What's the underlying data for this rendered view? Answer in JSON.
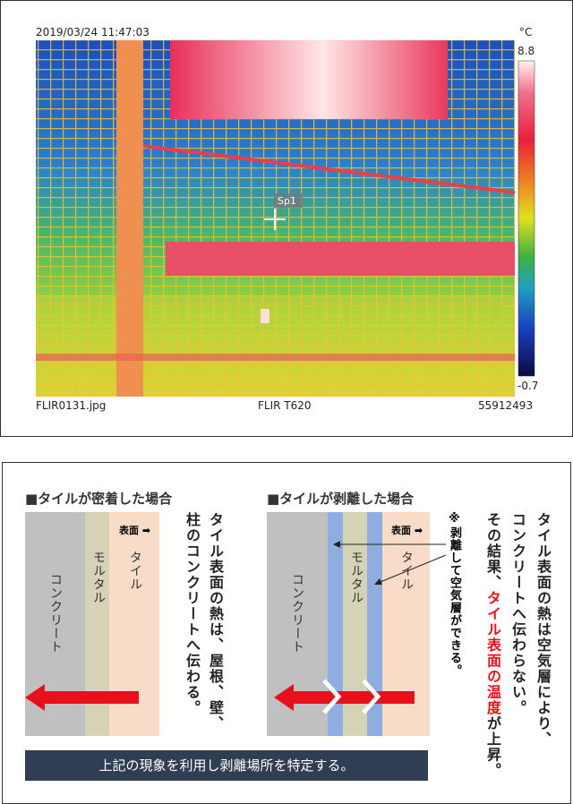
{
  "thermal": {
    "timestamp": "2019/03/24 11:47:03",
    "unit": "°C",
    "scale_max": "8.8",
    "scale_min": "-0.7",
    "spot": "Sp1",
    "filename": "FLIR0131.jpg",
    "camera": "FLIR T620",
    "serial": "55912493"
  },
  "left": {
    "title": "■タイルが密着した場合",
    "surface": "表面",
    "concrete": "コンクリート",
    "mortar": "モルタル",
    "tile": "タイル",
    "line1": "タイル表面の熱は、屋根、壁、",
    "line2": "柱のコンクリートへ伝わる。"
  },
  "right": {
    "title": "■タイルが剥離した場合",
    "surface": "表面",
    "concrete": "コンクリート",
    "mortar": "モルタル",
    "tile": "タイル",
    "note": "※剥離して空気層ができる。",
    "line1": "タイル表面の熱は空気層により、",
    "line2": "コンクリートへ伝わらない。",
    "line3_a": "その結果、",
    "line3_red": "タイル表面の温度",
    "line3_b": "が上昇。"
  },
  "footer": "上記の現象を利用し剥離場所を特定する。"
}
